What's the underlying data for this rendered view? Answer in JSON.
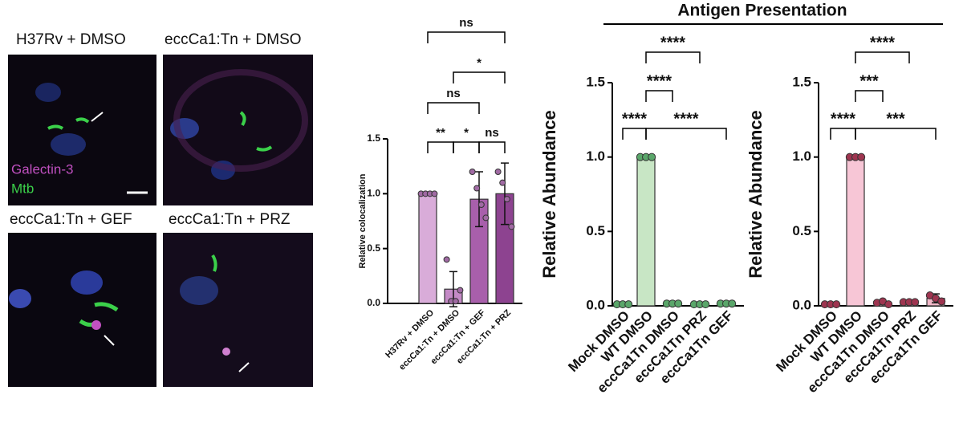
{
  "microscopy": {
    "panels": [
      {
        "label": "H37Rv + DMSO"
      },
      {
        "label": "eccCa1:Tn + DMSO"
      },
      {
        "label": "eccCa1:Tn + GEF"
      },
      {
        "label": "eccCa1:Tn + PRZ"
      }
    ],
    "legend": [
      "Galectin-3",
      "Mtb"
    ]
  },
  "figure": {
    "group_title": "Antigen Presentation"
  },
  "chart_data": [
    {
      "type": "bar",
      "y_label": "Relative colocalization",
      "categories": [
        "H37Rv + DMSO",
        "eccCa1:Tn + DMSO",
        "eccCa1:Tn + GEF",
        "eccCa1:Tn + PRZ"
      ],
      "values": [
        1.0,
        0.13,
        0.95,
        1.0
      ],
      "errors": [
        0,
        0.16,
        0.25,
        0.28
      ],
      "points": [
        [
          1,
          1,
          1,
          1
        ],
        [
          0.4,
          0.02,
          0.02,
          0.12
        ],
        [
          1.2,
          1.05,
          0.9,
          0.78
        ],
        [
          1.2,
          1.1,
          0.95,
          0.7
        ]
      ],
      "colors": [
        "#d9acd9",
        "#c48ac6",
        "#a85fab",
        "#8d4390"
      ],
      "point_color": "#a06aa3",
      "ylim": [
        0,
        1.5
      ],
      "yticks": [
        {
          "value": 0,
          "label": "0.0"
        },
        {
          "value": 0.5,
          "label": "0.5"
        },
        {
          "value": 1,
          "label": "1.0"
        },
        {
          "value": 1.5,
          "label": "1.5"
        }
      ],
      "annotations": [
        "ns",
        "*",
        "ns",
        "**",
        "*",
        "ns"
      ]
    },
    {
      "type": "bar",
      "y_label": "Relative Abundance",
      "categories": [
        "Mock DMSO",
        "WT DMSO",
        "eccCa1Tn DMSO",
        "eccCa1Tn PRZ",
        "eccCa1Tn GEF"
      ],
      "values": [
        0.01,
        1.0,
        0.015,
        0.01,
        0.015
      ],
      "errors": [
        0,
        0,
        0,
        0,
        0
      ],
      "points": [
        [
          0.01,
          0.01,
          0.01
        ],
        [
          1,
          1,
          1
        ],
        [
          0.015,
          0.015,
          0.015
        ],
        [
          0.01,
          0.01,
          0.01
        ],
        [
          0.015,
          0.015,
          0.015
        ]
      ],
      "colors": [
        "#f2f2f2",
        "#c8e6c5",
        "#c8e6c5",
        "#c8e6c5",
        "#c8e6c5"
      ],
      "point_color": "#5aa66a",
      "ylim": [
        0,
        1.5
      ],
      "yticks": [
        {
          "value": 0,
          "label": "0.0"
        },
        {
          "value": 0.5,
          "label": "0.5"
        },
        {
          "value": 1,
          "label": "1.0"
        },
        {
          "value": 1.5,
          "label": "1.5"
        }
      ],
      "annotations": [
        "****",
        "****",
        "****",
        "****"
      ]
    },
    {
      "type": "bar",
      "y_label": "Relative Abundance",
      "categories": [
        "Mock DMSO",
        "WT DMSO",
        "eccCa1Tn DMSO",
        "eccCa1Tn PRZ",
        "eccCa1Tn GEF"
      ],
      "values": [
        0.01,
        1.0,
        0.02,
        0.025,
        0.05
      ],
      "errors": [
        0,
        0,
        0.01,
        0.01,
        0.03
      ],
      "points": [
        [
          0.01,
          0.01,
          0.01
        ],
        [
          1,
          1,
          1
        ],
        [
          0.02,
          0.03,
          0.01
        ],
        [
          0.025,
          0.025,
          0.025
        ],
        [
          0.07,
          0.05,
          0.03
        ]
      ],
      "colors": [
        "#f2f2f2",
        "#f7c6d6",
        "#f2b8c8",
        "#f2b8c8",
        "#f2b8c8"
      ],
      "point_color": "#9e3550",
      "ylim": [
        0,
        1.5
      ],
      "yticks": [
        {
          "value": 0,
          "label": "0.0"
        },
        {
          "value": 0.5,
          "label": "0.5"
        },
        {
          "value": 1,
          "label": "1.0"
        },
        {
          "value": 1.5,
          "label": "1.5"
        }
      ],
      "annotations": [
        "****",
        "***",
        "****",
        "***"
      ]
    }
  ]
}
